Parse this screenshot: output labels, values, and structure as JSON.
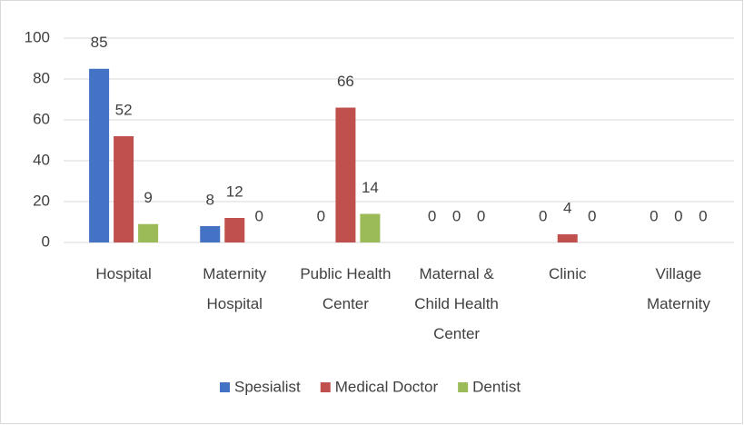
{
  "chart_data": {
    "type": "bar",
    "categories": [
      "Hospital",
      "Maternity Hospital",
      "Public Health Center",
      "Maternal & Child Health Center",
      "Clinic",
      "Village Maternity"
    ],
    "series": [
      {
        "name": "Spesialist",
        "color": "#4472c4",
        "values": [
          85,
          8,
          0,
          0,
          0,
          0
        ]
      },
      {
        "name": "Medical Doctor",
        "color": "#c0504d",
        "values": [
          52,
          12,
          66,
          0,
          4,
          0
        ]
      },
      {
        "name": "Dentist",
        "color": "#9bbb59",
        "values": [
          9,
          0,
          14,
          0,
          0,
          0
        ]
      }
    ],
    "ylim": [
      0,
      100
    ],
    "yticks": [
      0,
      20,
      40,
      60,
      80,
      100
    ],
    "grid": true,
    "legend": "bottom"
  }
}
